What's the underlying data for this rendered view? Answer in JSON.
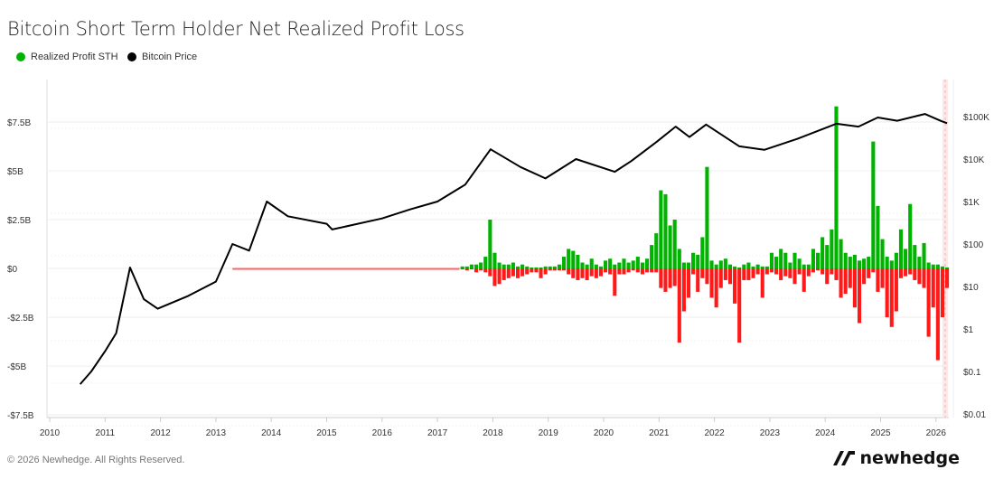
{
  "title": "Bitcoin Short Term Holder Net Realized Profit Loss",
  "legend": [
    {
      "label": "Realized Profit STH",
      "color": "#00b300"
    },
    {
      "label": "Bitcoin Price",
      "color": "#000000"
    }
  ],
  "footer": "© 2026 Newhedge. All Rights Reserved.",
  "logo_text": "newhedge",
  "chart_data": {
    "type": "bar+line",
    "title": "Bitcoin Short Term Holder Net Realized Profit Loss",
    "x_ticks": [
      "2010",
      "2011",
      "2012",
      "2013",
      "2014",
      "2015",
      "2016",
      "2017",
      "2018",
      "2019",
      "2020",
      "2021",
      "2022",
      "2023",
      "2024",
      "2025",
      "2026"
    ],
    "xlim": [
      2010,
      2026.25
    ],
    "left_axis": {
      "ylim": [
        -7.5,
        9.8
      ],
      "ticks": [
        7.5,
        5,
        2.5,
        0,
        -2.5,
        -5,
        -7.5
      ],
      "tick_labels": [
        "$7.5B",
        "$5B",
        "$2.5B",
        "$0",
        "-$2.5B",
        "-$5B",
        "-$7.5B"
      ],
      "unit": "USD billions"
    },
    "right_axis": {
      "scale": "log",
      "ticks": [
        100000,
        10000,
        1000,
        100,
        10,
        1,
        0.1,
        0.01
      ],
      "tick_labels": [
        "$100K",
        "$10K",
        "$1K",
        "$100",
        "$10",
        "$1",
        "$0.1",
        "$0.01"
      ]
    },
    "grid": true,
    "legend_position": "top-left",
    "colors": {
      "profit": "#00b300",
      "loss": "#ff1a1a",
      "price": "#000000"
    },
    "net_realized_series_start": "2017-06",
    "profit": [
      0.1,
      0.1,
      0.2,
      0.2,
      0.3,
      0.6,
      2.5,
      0.8,
      0.3,
      0.2,
      0.2,
      0.3,
      0.1,
      0.2,
      0.1,
      0.05,
      0.05,
      0.05,
      0.1,
      0.1,
      0.1,
      0.2,
      0.6,
      1.0,
      0.9,
      0.7,
      0.3,
      0.2,
      0.5,
      0.2,
      0.1,
      0.4,
      0.5,
      0.2,
      0.3,
      0.5,
      0.3,
      0.4,
      0.6,
      0.3,
      0.5,
      1.2,
      1.8,
      4.0,
      3.8,
      2.2,
      2.5,
      1.0,
      0.3,
      0.3,
      0.8,
      0.7,
      1.6,
      5.2,
      0.4,
      0.2,
      0.4,
      0.5,
      0.2,
      0.1,
      0.05,
      0.2,
      0.3,
      0.1,
      0.2,
      0.1,
      0.1,
      0.8,
      0.6,
      1.0,
      0.8,
      0.3,
      0.8,
      0.5,
      0.2,
      0.2,
      1.0,
      0.8,
      1.6,
      1.2,
      2.0,
      8.3,
      1.5,
      0.8,
      0.6,
      0.7,
      0.4,
      0.5,
      0.6,
      6.5,
      3.2,
      1.5,
      0.6,
      0.4,
      0.8,
      2.0,
      1.0,
      3.3,
      1.2,
      0.6,
      1.3,
      0.3,
      0.2,
      0.2,
      0.1,
      0.05
    ],
    "loss": [
      -0.05,
      -0.1,
      -0.05,
      -0.2,
      -0.1,
      -0.2,
      -0.4,
      -0.9,
      -0.8,
      -0.6,
      -0.5,
      -0.4,
      -0.5,
      -0.4,
      -0.3,
      -0.2,
      -0.2,
      -0.5,
      -0.3,
      -0.1,
      -0.1,
      -0.1,
      -0.1,
      -0.3,
      -0.5,
      -0.6,
      -0.5,
      -0.6,
      -0.4,
      -0.5,
      -0.4,
      -0.2,
      -0.3,
      -1.4,
      -0.3,
      -0.3,
      -0.2,
      -0.1,
      -0.2,
      -0.3,
      -0.2,
      -0.2,
      -0.2,
      -1.0,
      -1.2,
      -1.0,
      -0.9,
      -3.8,
      -2.2,
      -1.5,
      -0.3,
      -1.2,
      -0.5,
      -0.8,
      -1.5,
      -2.0,
      -1.0,
      -0.6,
      -0.8,
      -1.8,
      -3.8,
      -0.6,
      -0.6,
      -0.5,
      -0.3,
      -1.5,
      -0.3,
      -0.2,
      -0.3,
      -0.6,
      -0.4,
      -0.5,
      -0.8,
      -0.3,
      -1.2,
      -0.4,
      -0.2,
      -0.1,
      -0.3,
      -0.8,
      -0.3,
      -0.6,
      -1.5,
      -1.3,
      -1.0,
      -2.0,
      -2.8,
      -0.8,
      -0.5,
      -0.2,
      -1.2,
      -1.0,
      -2.5,
      -3.0,
      -2.2,
      -0.5,
      -0.4,
      -0.3,
      -0.6,
      -0.8,
      -1.0,
      -3.5,
      -2.0,
      -4.7,
      -2.5,
      -1.0
    ],
    "price": {
      "x": [
        2010.55,
        2010.75,
        2011.0,
        2011.2,
        2011.45,
        2011.7,
        2011.95,
        2012.5,
        2013.0,
        2013.3,
        2013.6,
        2013.92,
        2014.3,
        2015.0,
        2015.1,
        2016.0,
        2016.5,
        2017.0,
        2017.5,
        2017.96,
        2018.5,
        2018.95,
        2019.5,
        2020.2,
        2020.5,
        2020.95,
        2021.3,
        2021.55,
        2021.85,
        2022.45,
        2022.9,
        2023.5,
        2024.2,
        2024.6,
        2024.95,
        2025.3,
        2025.8,
        2026.1,
        2026.2
      ],
      "y": [
        0.05,
        0.1,
        0.3,
        0.8,
        28,
        5,
        3,
        6,
        13,
        100,
        70,
        1000,
        450,
        300,
        220,
        400,
        650,
        1000,
        2500,
        17000,
        6500,
        3500,
        10000,
        5000,
        9000,
        25000,
        58000,
        33000,
        65000,
        20000,
        16500,
        30000,
        68000,
        58000,
        95000,
        80000,
        115000,
        78000,
        70000
      ]
    }
  }
}
